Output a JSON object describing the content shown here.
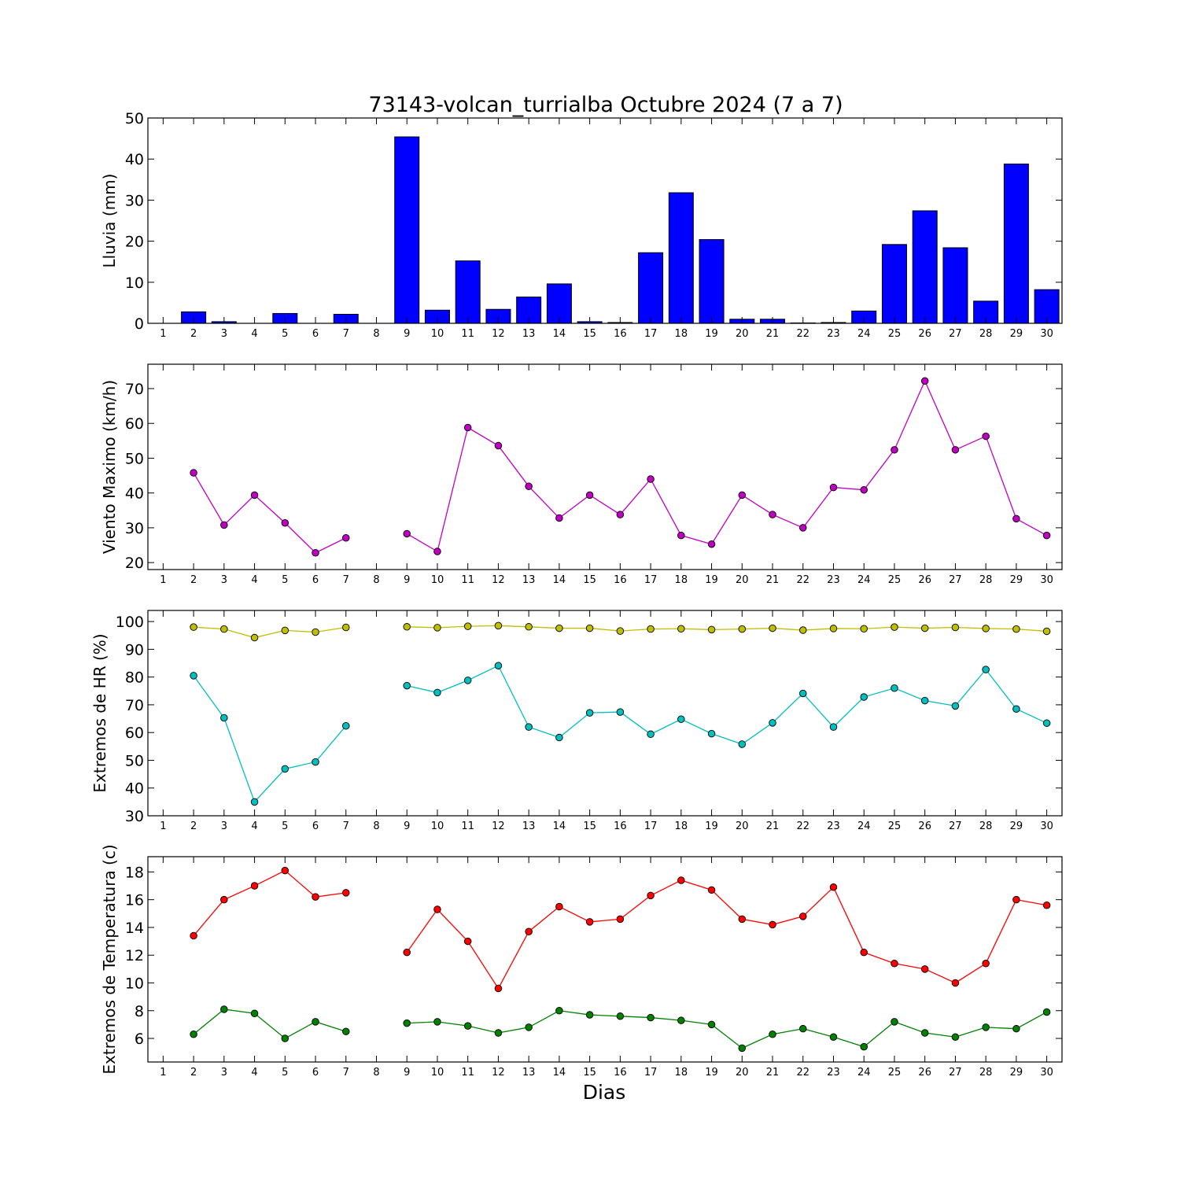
{
  "chart_data": [
    {
      "type": "bar",
      "title": "73143-volcan_turrialba Octubre 2024  (7 a 7)",
      "ylabel": "Lluvia (mm)",
      "ylim": [
        0,
        50
      ],
      "yticks": [
        0,
        10,
        20,
        30,
        40,
        50
      ],
      "categories": [
        "1",
        "2",
        "3",
        "4",
        "5",
        "6",
        "7",
        "8",
        "9",
        "10",
        "11",
        "12",
        "13",
        "14",
        "15",
        "16",
        "17",
        "18",
        "19",
        "20",
        "21",
        "22",
        "23",
        "24",
        "25",
        "26",
        "27",
        "28",
        "29",
        "30"
      ],
      "values": [
        0,
        2.8,
        0.4,
        0,
        2.4,
        0,
        2.2,
        0,
        45.4,
        3.2,
        15.2,
        3.4,
        6.4,
        9.6,
        0.4,
        0.2,
        17.2,
        31.8,
        20.4,
        1.0,
        1.0,
        0.1,
        0.2,
        3.0,
        19.2,
        27.4,
        18.4,
        5.4,
        38.8,
        8.2
      ],
      "color": "#0000ff"
    },
    {
      "type": "line",
      "ylabel": "Viento Maximo (km/h)",
      "ylim": [
        18,
        77
      ],
      "yticks": [
        20,
        30,
        40,
        50,
        60,
        70
      ],
      "x": [
        1,
        2,
        3,
        4,
        5,
        6,
        7,
        8,
        9,
        10,
        11,
        12,
        13,
        14,
        15,
        16,
        17,
        18,
        19,
        20,
        21,
        22,
        23,
        24,
        25,
        26,
        27,
        28,
        29,
        30
      ],
      "series": [
        {
          "color": "#bf00bf",
          "values": [
            null,
            45.8,
            30.8,
            39.4,
            31.4,
            22.8,
            27.1,
            null,
            28.3,
            23.2,
            58.8,
            53.6,
            41.9,
            32.8,
            39.4,
            33.8,
            44.0,
            27.8,
            25.3,
            39.4,
            33.8,
            30.0,
            41.6,
            40.9,
            52.4,
            72.2,
            52.4,
            56.3,
            32.6,
            27.8
          ]
        }
      ]
    },
    {
      "type": "line",
      "ylabel": "Extremos de HR (%)",
      "ylim": [
        30,
        104
      ],
      "yticks": [
        30,
        40,
        50,
        60,
        70,
        80,
        90,
        100
      ],
      "x": [
        1,
        2,
        3,
        4,
        5,
        6,
        7,
        8,
        9,
        10,
        11,
        12,
        13,
        14,
        15,
        16,
        17,
        18,
        19,
        20,
        21,
        22,
        23,
        24,
        25,
        26,
        27,
        28,
        29,
        30
      ],
      "series": [
        {
          "color": "#bfbf00",
          "values": [
            null,
            98.0,
            97.3,
            94.2,
            96.8,
            96.2,
            97.9,
            null,
            98.1,
            97.8,
            98.3,
            98.5,
            98.1,
            97.6,
            97.6,
            96.6,
            97.3,
            97.4,
            97.1,
            97.3,
            97.6,
            96.9,
            97.5,
            97.4,
            98.0,
            97.6,
            97.9,
            97.5,
            97.3,
            96.5
          ]
        },
        {
          "color": "#00bfbf",
          "values": [
            null,
            80.5,
            65.3,
            35.0,
            46.9,
            49.4,
            62.4,
            null,
            76.9,
            74.4,
            78.8,
            84.1,
            62.0,
            58.2,
            67.1,
            67.4,
            59.4,
            64.8,
            59.6,
            55.8,
            63.5,
            74.1,
            62.0,
            72.8,
            76.0,
            71.5,
            69.6,
            82.7,
            68.5,
            63.4
          ]
        }
      ]
    },
    {
      "type": "line",
      "ylabel": "Extremos de Temperatura (c)",
      "xlabel": "Dias",
      "ylim": [
        4.3,
        19.1
      ],
      "yticks": [
        6,
        8,
        10,
        12,
        14,
        16,
        18
      ],
      "x": [
        1,
        2,
        3,
        4,
        5,
        6,
        7,
        8,
        9,
        10,
        11,
        12,
        13,
        14,
        15,
        16,
        17,
        18,
        19,
        20,
        21,
        22,
        23,
        24,
        25,
        26,
        27,
        28,
        29,
        30
      ],
      "series": [
        {
          "color": "#ff0000",
          "values": [
            null,
            13.4,
            16.0,
            17.0,
            18.1,
            16.2,
            16.5,
            null,
            12.2,
            15.3,
            13.0,
            9.6,
            13.7,
            15.5,
            14.4,
            14.6,
            16.3,
            17.4,
            16.7,
            14.6,
            14.2,
            14.8,
            16.9,
            12.2,
            11.4,
            11.0,
            10.0,
            11.4,
            16.0,
            15.6
          ]
        },
        {
          "color": "#008000",
          "values": [
            null,
            6.3,
            8.1,
            7.8,
            6.0,
            7.2,
            6.5,
            null,
            7.1,
            7.2,
            6.9,
            6.4,
            6.8,
            8.0,
            7.7,
            7.6,
            7.5,
            7.3,
            7.0,
            5.3,
            6.3,
            6.7,
            6.1,
            5.4,
            7.2,
            6.4,
            6.1,
            6.8,
            6.7,
            7.9
          ]
        }
      ]
    }
  ]
}
